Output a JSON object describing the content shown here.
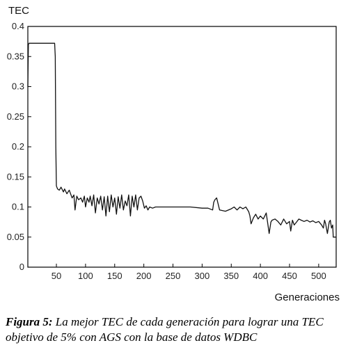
{
  "chart_data": {
    "type": "line",
    "ylabel": "TEC",
    "xlabel": "Generaciones",
    "xlim": [
      1,
      530
    ],
    "ylim": [
      0,
      0.4
    ],
    "x_ticks": [
      50,
      100,
      150,
      200,
      250,
      300,
      350,
      400,
      450,
      500
    ],
    "y_ticks": [
      0,
      0.05,
      0.1,
      0.15,
      0.2,
      0.25,
      0.3,
      0.35,
      0.4
    ],
    "y_tick_labels": [
      "0",
      "0.05",
      "0.1",
      "0.15",
      "0.2",
      "0.25",
      "0.3",
      "0.35",
      "0.4"
    ],
    "grid": false,
    "series": [
      {
        "color": "#111111",
        "x": [
          1,
          2,
          3,
          47,
          48,
          49,
          50,
          52,
          55,
          58,
          62,
          64,
          68,
          72,
          75,
          77,
          80,
          82,
          85,
          88,
          92,
          95,
          98,
          100,
          103,
          106,
          108,
          111,
          114,
          117,
          120,
          123,
          126,
          129,
          132,
          135,
          138,
          141,
          144,
          147,
          150,
          153,
          156,
          159,
          162,
          165,
          168,
          171,
          174,
          177,
          180,
          183,
          186,
          189,
          192,
          195,
          198,
          201,
          204,
          207,
          210,
          215,
          220,
          225,
          230,
          240,
          260,
          280,
          300,
          310,
          318,
          320,
          322,
          325,
          330,
          340,
          350,
          355,
          360,
          365,
          370,
          375,
          380,
          382,
          384,
          388,
          392,
          396,
          400,
          405,
          410,
          413,
          415,
          418,
          420,
          425,
          430,
          435,
          440,
          445,
          450,
          452,
          455,
          458,
          462,
          466,
          470,
          475,
          480,
          485,
          490,
          495,
          500,
          505,
          508,
          510,
          512,
          515,
          518,
          520,
          522,
          524,
          525,
          527,
          530
        ],
        "y": [
          0.3,
          0.37,
          0.372,
          0.372,
          0.35,
          0.2,
          0.135,
          0.13,
          0.128,
          0.133,
          0.125,
          0.13,
          0.122,
          0.128,
          0.12,
          0.115,
          0.12,
          0.095,
          0.118,
          0.112,
          0.115,
          0.108,
          0.118,
          0.1,
          0.115,
          0.108,
          0.118,
          0.102,
          0.12,
          0.09,
          0.115,
          0.105,
          0.118,
          0.095,
          0.117,
          0.085,
          0.118,
          0.092,
          0.12,
          0.1,
          0.115,
          0.088,
          0.117,
          0.098,
          0.12,
          0.095,
          0.11,
          0.102,
          0.12,
          0.085,
          0.118,
          0.1,
          0.12,
          0.095,
          0.115,
          0.118,
          0.11,
          0.098,
          0.102,
          0.095,
          0.1,
          0.098,
          0.1,
          0.1,
          0.1,
          0.1,
          0.1,
          0.1,
          0.098,
          0.098,
          0.095,
          0.108,
          0.112,
          0.115,
          0.095,
          0.093,
          0.097,
          0.1,
          0.095,
          0.1,
          0.097,
          0.1,
          0.092,
          0.085,
          0.072,
          0.082,
          0.088,
          0.08,
          0.085,
          0.08,
          0.09,
          0.07,
          0.056,
          0.075,
          0.078,
          0.08,
          0.076,
          0.07,
          0.08,
          0.072,
          0.076,
          0.06,
          0.078,
          0.07,
          0.075,
          0.08,
          0.078,
          0.076,
          0.078,
          0.075,
          0.077,
          0.074,
          0.076,
          0.07,
          0.065,
          0.078,
          0.072,
          0.056,
          0.075,
          0.078,
          0.065,
          0.07,
          0.05,
          0.05,
          0.05
        ]
      }
    ]
  },
  "caption": {
    "label": "Figura 5:",
    "text": "La mejor TEC de cada generación para lograr una TEC objetivo de 5% con AGS con la base de datos WDBC"
  }
}
